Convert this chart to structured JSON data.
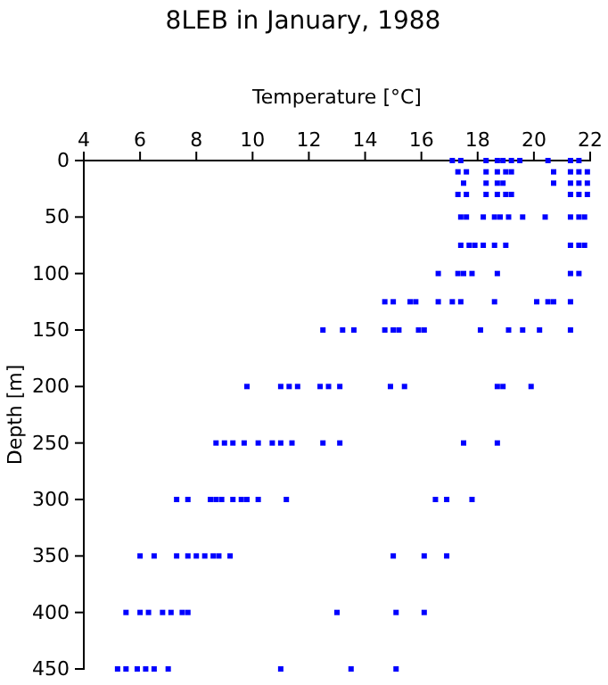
{
  "chart_data": {
    "type": "scatter",
    "title": "8LEB in January, 1988",
    "xlabel": "Temperature [°C]",
    "ylabel": "Depth [m]",
    "xlim": [
      4,
      22
    ],
    "xticks": [
      4,
      6,
      8,
      10,
      12,
      14,
      16,
      18,
      20,
      22
    ],
    "ylim": [
      450,
      0
    ],
    "yticks": [
      0,
      50,
      100,
      150,
      200,
      250,
      300,
      350,
      400,
      450
    ],
    "grid": false,
    "marker": "square",
    "series": [
      {
        "color": "#0000ff",
        "x": [
          17.1,
          17.4,
          18.3,
          18.7,
          18.9,
          19.2,
          19.5,
          20.5,
          21.3,
          21.6,
          17.3,
          17.6,
          18.3,
          18.7,
          19.0,
          19.2,
          20.7,
          21.3,
          21.6,
          21.9,
          17.5,
          18.3,
          18.7,
          18.9,
          20.7,
          21.3,
          21.6,
          21.9,
          17.3,
          17.6,
          18.3,
          18.7,
          19.0,
          19.2,
          21.3,
          21.6,
          21.9,
          17.4,
          17.6,
          18.2,
          18.6,
          18.8,
          19.1,
          19.6,
          20.4,
          21.3,
          21.6,
          21.8,
          17.4,
          17.7,
          17.9,
          18.2,
          18.6,
          19.0,
          21.3,
          21.6,
          21.8,
          16.6,
          17.3,
          17.5,
          17.8,
          18.7,
          21.3,
          21.6,
          14.7,
          15.0,
          15.6,
          15.8,
          16.6,
          17.1,
          17.4,
          18.6,
          20.1,
          20.5,
          20.7,
          21.3,
          12.5,
          13.2,
          13.6,
          14.7,
          15.0,
          15.2,
          15.9,
          16.1,
          18.1,
          19.1,
          19.6,
          20.2,
          21.3,
          9.8,
          11.0,
          11.3,
          11.6,
          12.4,
          12.7,
          13.1,
          14.9,
          15.4,
          18.7,
          18.9,
          19.9,
          8.7,
          9.0,
          9.3,
          9.7,
          10.2,
          10.7,
          11.0,
          11.4,
          12.5,
          13.1,
          17.5,
          18.7,
          7.3,
          7.7,
          8.5,
          8.7,
          8.9,
          9.3,
          9.6,
          9.8,
          10.2,
          11.2,
          16.5,
          16.9,
          17.8,
          6.0,
          6.5,
          7.3,
          7.7,
          8.0,
          8.3,
          8.6,
          8.8,
          9.2,
          15.0,
          16.1,
          16.9,
          5.5,
          6.0,
          6.3,
          6.8,
          7.1,
          7.5,
          7.7,
          13.0,
          15.1,
          16.1,
          5.2,
          5.5,
          5.9,
          6.2,
          6.5,
          7.0,
          11.0,
          13.5,
          15.1
        ],
        "values": [
          0,
          0,
          0,
          0,
          0,
          0,
          0,
          0,
          0,
          0,
          10,
          10,
          10,
          10,
          10,
          10,
          10,
          10,
          10,
          10,
          20,
          20,
          20,
          20,
          20,
          20,
          20,
          20,
          30,
          30,
          30,
          30,
          30,
          30,
          30,
          30,
          30,
          50,
          50,
          50,
          50,
          50,
          50,
          50,
          50,
          50,
          50,
          50,
          75,
          75,
          75,
          75,
          75,
          75,
          75,
          75,
          75,
          100,
          100,
          100,
          100,
          100,
          100,
          100,
          125,
          125,
          125,
          125,
          125,
          125,
          125,
          125,
          125,
          125,
          125,
          125,
          150,
          150,
          150,
          150,
          150,
          150,
          150,
          150,
          150,
          150,
          150,
          150,
          150,
          200,
          200,
          200,
          200,
          200,
          200,
          200,
          200,
          200,
          200,
          200,
          200,
          250,
          250,
          250,
          250,
          250,
          250,
          250,
          250,
          250,
          250,
          250,
          250,
          300,
          300,
          300,
          300,
          300,
          300,
          300,
          300,
          300,
          300,
          300,
          300,
          300,
          350,
          350,
          350,
          350,
          350,
          350,
          350,
          350,
          350,
          350,
          350,
          350,
          400,
          400,
          400,
          400,
          400,
          400,
          400,
          400,
          400,
          400,
          450,
          450,
          450,
          450,
          450,
          450,
          450,
          450,
          450
        ]
      }
    ]
  }
}
